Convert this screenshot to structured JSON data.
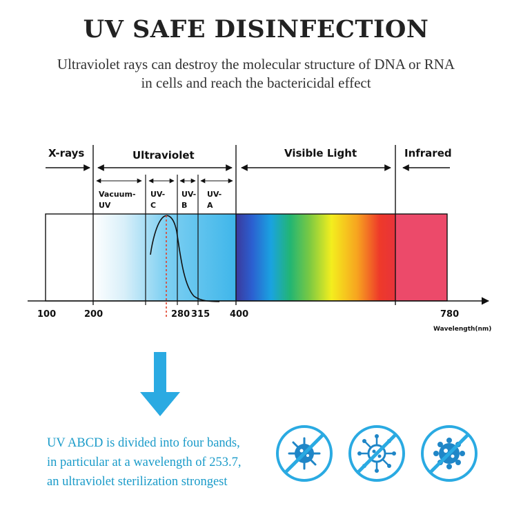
{
  "header": {
    "title": "UV SAFE DISINFECTION",
    "subtitle_line1": "Ultraviolet rays can destroy the molecular structure of DNA or RNA",
    "subtitle_line2": "in cells and reach the bactericidal effect"
  },
  "spectrum": {
    "regions": {
      "xrays": "X-rays",
      "ultraviolet": "Ultraviolet",
      "visible": "Visible Light",
      "infrared": "Infrared"
    },
    "uv_bands": [
      {
        "line1": "Vacuum-",
        "line2": "UV"
      },
      {
        "line1": "UV-",
        "line2": "C"
      },
      {
        "line1": "UV-",
        "line2": "B"
      },
      {
        "line1": "UV-",
        "line2": "A"
      }
    ],
    "ticks": [
      "100",
      "200",
      "280",
      "315",
      "400",
      "780"
    ],
    "axis_label": "Wavelength(nm)",
    "colors": {
      "uv_blue": "#3fb6ea",
      "infrared": "#ec4a6a",
      "outline": "#111111",
      "peak_marker": "#e0402a"
    }
  },
  "description": {
    "line1": "UV ABCD is divided into four bands,",
    "line2": "in particular at a wavelength of 253.7,",
    "line3": "an ultraviolet sterilization strongest"
  },
  "accent_color": "#1a9bc9",
  "arrow_color": "#2aaae2",
  "icons": [
    "no-bacteria-icon",
    "no-virus-icon",
    "no-germ-icon"
  ]
}
